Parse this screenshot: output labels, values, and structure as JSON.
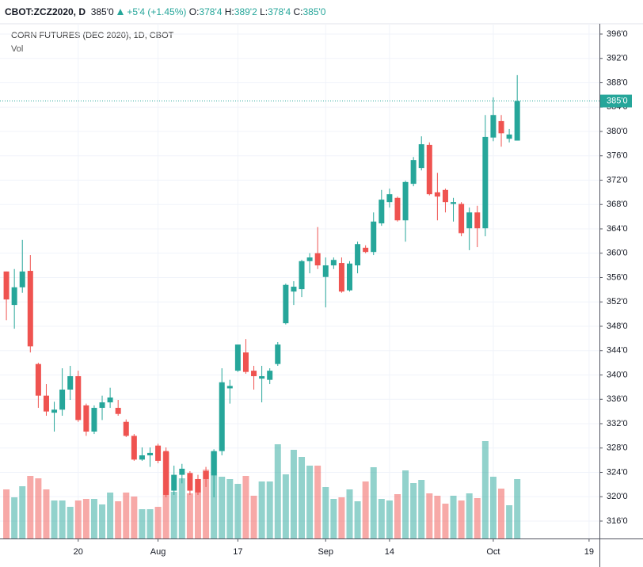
{
  "header": {
    "symbol": "CBOT:ZCZ2020, D",
    "last": "385'0",
    "change": "+5'4 (+1.45%)",
    "ohlc": [
      {
        "label": "O:",
        "value": "378'4"
      },
      {
        "label": "H:",
        "value": "389'2"
      },
      {
        "label": "L:",
        "value": "378'4"
      },
      {
        "label": "C:",
        "value": "385'0"
      }
    ]
  },
  "chart_data": {
    "type": "candlestick",
    "title": "CORN FUTURES (DEC 2020), 1D, CBOT",
    "volume_label": "Vol",
    "up_color": "#26a69a",
    "down_color": "#ef5350",
    "grid": true,
    "open": [
      357,
      351.5,
      354.4,
      357.1,
      341.8,
      336.6,
      333.8,
      334.3,
      337.6,
      339.8,
      335,
      330.7,
      334.6,
      335.5,
      334.6,
      332.3,
      330,
      326.1,
      326.8,
      328.4,
      327.5,
      321,
      323.6,
      323.9,
      322.9,
      324.2,
      323.5,
      327.5,
      337.8,
      340.7,
      343.7,
      340.7,
      339.4,
      339.2,
      341.8,
      348.5,
      353.7,
      354.1,
      358.7,
      360,
      356.1,
      358,
      358.4,
      353.9,
      358,
      360.9,
      360.2,
      364.9,
      368.4,
      369.1,
      365.4,
      371.4,
      374,
      377.8,
      370,
      370.4,
      368.1,
      368.1,
      364.1,
      366.7,
      364.1,
      379,
      381.7,
      378.8,
      378.5
    ],
    "high": [
      357,
      357.4,
      362.2,
      359.7,
      342,
      338.5,
      335.6,
      341.1,
      341.5,
      340.7,
      335.3,
      335,
      336.6,
      337.9,
      335.9,
      332.7,
      330.3,
      328.1,
      328.1,
      328.7,
      328.1,
      325.1,
      325.4,
      324.2,
      323.6,
      324.9,
      327.8,
      341.1,
      339.2,
      345,
      345.9,
      341.5,
      341.5,
      341.1,
      345.4,
      355,
      355.4,
      358.9,
      360,
      364.3,
      359.3,
      359.3,
      359.3,
      358.7,
      361.9,
      361.3,
      366.7,
      370.4,
      370.6,
      369.3,
      371.9,
      375.8,
      379.2,
      378.2,
      373.2,
      370.6,
      369.1,
      368.4,
      367.5,
      367.8,
      382.7,
      385.6,
      382.7,
      380.4,
      389.25
    ],
    "low": [
      349,
      347.6,
      353.5,
      343.7,
      334.6,
      333.3,
      330.7,
      333.3,
      335.9,
      332.3,
      330,
      330.3,
      332.6,
      334.6,
      333.3,
      329.8,
      325.9,
      325.9,
      324.9,
      325.5,
      319.9,
      320.3,
      322.2,
      320.3,
      320.3,
      321.6,
      319.9,
      326.8,
      335.3,
      340.5,
      340.2,
      337.6,
      335.5,
      338.5,
      341.5,
      348.3,
      351.5,
      352.8,
      356.7,
      357.4,
      351.1,
      357.4,
      353.5,
      353.7,
      356.7,
      360,
      359.7,
      364.5,
      367.5,
      365.2,
      361.9,
      371,
      373.6,
      369.5,
      365.4,
      366.7,
      365.2,
      362.8,
      360.5,
      361,
      362.8,
      378.4,
      377.5,
      378.2,
      378.5
    ],
    "close": [
      352.4,
      354.4,
      357,
      344.7,
      336.6,
      334,
      334.3,
      337.6,
      339.8,
      332.6,
      330.7,
      334.6,
      335.5,
      336.3,
      333.6,
      330,
      326.1,
      326.8,
      327.2,
      325.9,
      320.3,
      323.6,
      324.6,
      321,
      320.7,
      322.9,
      327.5,
      338.8,
      338.2,
      345,
      340.5,
      339.8,
      339.8,
      340.7,
      345,
      354.8,
      354.5,
      358.7,
      359.3,
      358,
      358,
      358.9,
      353.7,
      358.3,
      361.5,
      360.2,
      365.2,
      368.8,
      369.7,
      365.4,
      371.7,
      375.3,
      377.9,
      369.7,
      369.3,
      368.4,
      368.4,
      363.3,
      366.7,
      364.1,
      379.1,
      382.7,
      379.7,
      379.5,
      385
    ],
    "volume": [
      62,
      52,
      66,
      79,
      76,
      62,
      48,
      48,
      40,
      48,
      50,
      50,
      43,
      58,
      47,
      58,
      53,
      37,
      37,
      40,
      109,
      59,
      76,
      57,
      75,
      87,
      110,
      78,
      75,
      69,
      79,
      54,
      72,
      72,
      119,
      81,
      112,
      103,
      92,
      92,
      65,
      50,
      52,
      62,
      47,
      72,
      90,
      50,
      48,
      56,
      86,
      70,
      74,
      57,
      54,
      44,
      54,
      48,
      57,
      51,
      123,
      78,
      63,
      42,
      75
    ],
    "xlim": [
      -0.8,
      74.3
    ],
    "xticks": [
      {
        "value": 9,
        "label": "20"
      },
      {
        "value": 19,
        "label": "Aug"
      },
      {
        "value": 29,
        "label": "17"
      },
      {
        "value": 40,
        "label": "Sep"
      },
      {
        "value": 48,
        "label": "14"
      },
      {
        "value": 61,
        "label": "Oct"
      },
      {
        "value": 73,
        "label": "19"
      }
    ],
    "ylim": [
      313.14,
      397.69
    ],
    "yticks": [
      {
        "value": 316,
        "label": "316'0"
      },
      {
        "value": 320,
        "label": "320'0"
      },
      {
        "value": 324,
        "label": "324'0"
      },
      {
        "value": 328,
        "label": "328'0"
      },
      {
        "value": 332,
        "label": "332'0"
      },
      {
        "value": 336,
        "label": "336'0"
      },
      {
        "value": 340,
        "label": "340'0"
      },
      {
        "value": 344,
        "label": "344'0"
      },
      {
        "value": 348,
        "label": "348'0"
      },
      {
        "value": 352,
        "label": "352'0"
      },
      {
        "value": 356,
        "label": "356'0"
      },
      {
        "value": 360,
        "label": "360'0"
      },
      {
        "value": 364,
        "label": "364'0"
      },
      {
        "value": 368,
        "label": "368'0"
      },
      {
        "value": 372,
        "label": "372'0"
      },
      {
        "value": 376,
        "label": "376'0"
      },
      {
        "value": 380,
        "label": "380'0"
      },
      {
        "value": 384,
        "label": "384'0"
      },
      {
        "value": 388,
        "label": "388'0"
      },
      {
        "value": 392,
        "label": "392'0"
      },
      {
        "value": 396,
        "label": "396'0"
      }
    ],
    "last_price": {
      "value": 385,
      "label": "385'0"
    }
  }
}
